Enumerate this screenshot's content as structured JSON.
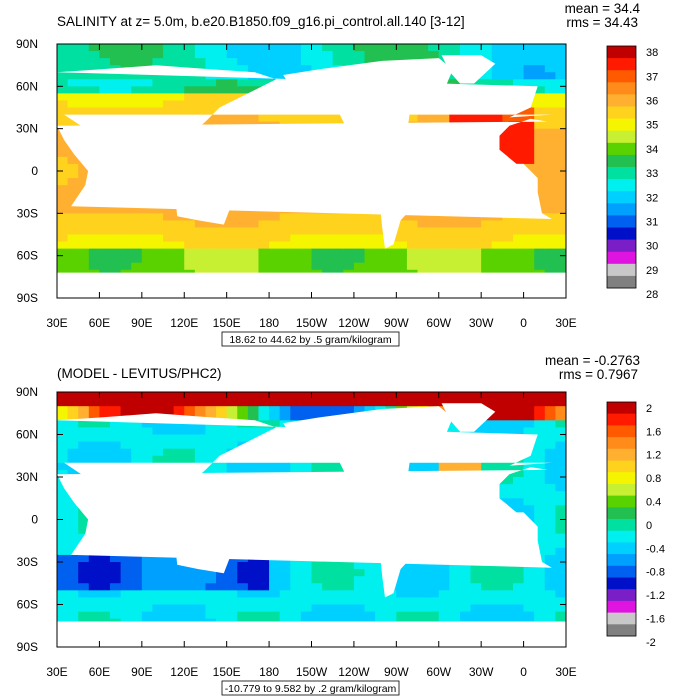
{
  "chart_data": [
    {
      "type": "heatmap",
      "title": "SALINITY at z=   5.0m, b.e20.B1850.f09_g16.pi_control.all.140 [3-12]",
      "stats": {
        "mean": "mean = 34.4",
        "rms": "rms = 34.43"
      },
      "range_label": "18.62 to 44.62 by .5 gram/kilogram",
      "x_ticks": [
        "30E",
        "60E",
        "90E",
        "120E",
        "150E",
        "180",
        "150W",
        "120W",
        "90W",
        "60W",
        "30W",
        "0",
        "30E"
      ],
      "y_ticks": [
        "90N",
        "60N",
        "30N",
        "0",
        "30S",
        "60S",
        "90S"
      ],
      "colorbar": {
        "labels": [
          "38",
          "37",
          "36",
          "35",
          "34",
          "33",
          "32",
          "31",
          "30",
          "29",
          "28"
        ],
        "colors": [
          "#c00000",
          "#ff1a00",
          "#ff5a00",
          "#ff8c1a",
          "#ffb030",
          "#ffd21e",
          "#f5f500",
          "#c8f032",
          "#5ad200",
          "#22c050",
          "#00e0a0",
          "#00f0f0",
          "#00d0ff",
          "#00a0ff",
          "#0060f0",
          "#0010c8",
          "#7a1ec8",
          "#e014e0",
          "#c8c8c8",
          "#808080"
        ]
      }
    },
    {
      "type": "heatmap",
      "title": "(MODEL - LEVITUS/PHC2)",
      "stats": {
        "mean": "mean = -0.2763",
        "rms": "rms = 0.7967"
      },
      "range_label": "-10.779 to 9.582 by .2 gram/kilogram",
      "x_ticks": [
        "30E",
        "60E",
        "90E",
        "120E",
        "150E",
        "180",
        "150W",
        "120W",
        "90W",
        "60W",
        "30W",
        "0",
        "30E"
      ],
      "y_ticks": [
        "90N",
        "60N",
        "30N",
        "0",
        "30S",
        "60S",
        "90S"
      ],
      "colorbar": {
        "labels": [
          "2",
          "1.6",
          "1.2",
          "0.8",
          "0.4",
          "0",
          "-0.4",
          "-0.8",
          "-1.2",
          "-1.6",
          "-2"
        ],
        "colors": [
          "#c00000",
          "#ff1a00",
          "#ff5a00",
          "#ff8c1a",
          "#ffb030",
          "#ffd21e",
          "#f5f500",
          "#c8f032",
          "#5ad200",
          "#22c050",
          "#00e0a0",
          "#00f0f0",
          "#00d0ff",
          "#00a0ff",
          "#0060f0",
          "#0010c8",
          "#7a1ec8",
          "#e014e0",
          "#c8c8c8",
          "#808080"
        ]
      }
    }
  ]
}
